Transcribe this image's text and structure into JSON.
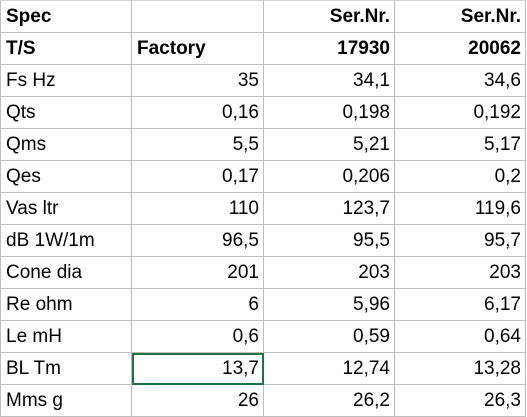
{
  "table": {
    "rows": [
      {
        "cells": [
          "Spec",
          "",
          "Ser.Nr.",
          "Ser.Nr."
        ],
        "header": true
      },
      {
        "cells": [
          "T/S",
          "Factory",
          "17930",
          "20062"
        ],
        "header": true
      },
      {
        "cells": [
          "Fs Hz",
          "35",
          "34,1",
          "34,6"
        ]
      },
      {
        "cells": [
          "Qts",
          "0,16",
          "0,198",
          "0,192"
        ]
      },
      {
        "cells": [
          "Qms",
          "5,5",
          "5,21",
          "5,17"
        ]
      },
      {
        "cells": [
          "Qes",
          "0,17",
          "0,206",
          "0,2"
        ]
      },
      {
        "cells": [
          "Vas ltr",
          "110",
          "123,7",
          "119,6"
        ]
      },
      {
        "cells": [
          "dB 1W/1m",
          "96,5",
          "95,5",
          "95,7"
        ]
      },
      {
        "cells": [
          "Cone dia",
          "201",
          "203",
          "203"
        ]
      },
      {
        "cells": [
          "Re ohm",
          "6",
          "5,96",
          "6,17"
        ]
      },
      {
        "cells": [
          "Le mH",
          "0,6",
          "0,59",
          "0,64"
        ]
      },
      {
        "cells": [
          "BL Tm",
          "13,7",
          "12,74",
          "13,28"
        ]
      },
      {
        "cells": [
          "Mms g",
          "26",
          "26,2",
          "26,3"
        ]
      }
    ]
  },
  "selection": {
    "row": 11,
    "col": 1,
    "border_color": "#217346"
  },
  "colors": {
    "grid": "#bdbdbd",
    "text": "#000000",
    "background": "#ffffff"
  }
}
